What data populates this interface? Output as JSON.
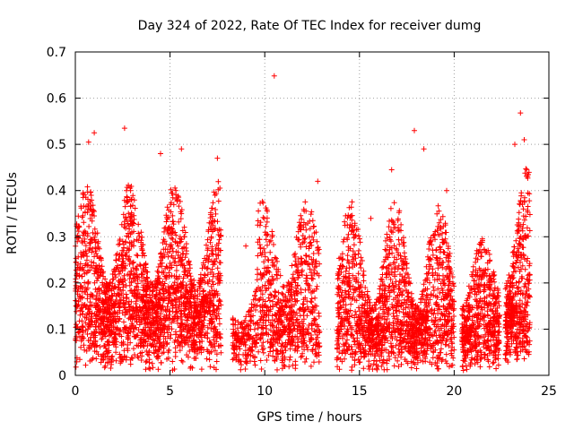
{
  "chart_data": {
    "type": "scatter",
    "title": "Day 324 of 2022, Rate Of TEC Index for receiver dumg",
    "xlabel": "GPS time / hours",
    "ylabel": "ROTI / TECUs",
    "xlim": [
      0,
      25
    ],
    "ylim": [
      0,
      0.7
    ],
    "xticks": [
      0,
      5,
      10,
      15,
      20,
      25
    ],
    "yticks": [
      0,
      0.1,
      0.2,
      0.3,
      0.4,
      0.5,
      0.6,
      0.7
    ],
    "xtick_labels": [
      "0",
      "5",
      "10",
      "15",
      "20",
      "25"
    ],
    "ytick_labels": [
      "0",
      "0.1",
      "0.2",
      "0.3",
      "0.4",
      "0.5",
      "0.6",
      "0.7"
    ],
    "grid": true,
    "marker": "plus",
    "color": "#ff0000",
    "notable_points": [
      {
        "x": 10.5,
        "y": 0.648
      },
      {
        "x": 2.6,
        "y": 0.535
      },
      {
        "x": 1.0,
        "y": 0.525
      },
      {
        "x": 0.7,
        "y": 0.505
      },
      {
        "x": 5.6,
        "y": 0.49
      },
      {
        "x": 4.5,
        "y": 0.48
      },
      {
        "x": 7.5,
        "y": 0.47
      },
      {
        "x": 12.8,
        "y": 0.42
      },
      {
        "x": 17.9,
        "y": 0.53
      },
      {
        "x": 16.7,
        "y": 0.445
      },
      {
        "x": 18.4,
        "y": 0.49
      },
      {
        "x": 23.5,
        "y": 0.568
      },
      {
        "x": 23.2,
        "y": 0.5
      },
      {
        "x": 23.7,
        "y": 0.51
      },
      {
        "x": 19.6,
        "y": 0.4
      },
      {
        "x": 15.6,
        "y": 0.34
      },
      {
        "x": 9.0,
        "y": 0.28
      },
      {
        "x": 21.2,
        "y": 0.27
      },
      {
        "x": 13.9,
        "y": 0.18
      },
      {
        "x": 14.4,
        "y": 0.2
      }
    ],
    "segments": [
      {
        "x0": 0.0,
        "x1": 7.7,
        "ybase": [
          0.01,
          0.15
        ],
        "ytop": [
          0.2,
          0.42
        ],
        "density": 2200
      },
      {
        "x0": 8.3,
        "x1": 9.6,
        "ybase": [
          0.01,
          0.08
        ],
        "ytop": [
          0.12,
          0.2
        ],
        "density": 180
      },
      {
        "x0": 9.6,
        "x1": 12.9,
        "ybase": [
          0.01,
          0.12
        ],
        "ytop": [
          0.2,
          0.38
        ],
        "density": 700
      },
      {
        "x0": 13.8,
        "x1": 20.0,
        "ybase": [
          0.01,
          0.1
        ],
        "ytop": [
          0.15,
          0.38
        ],
        "density": 1600
      },
      {
        "x0": 20.4,
        "x1": 22.4,
        "ybase": [
          0.01,
          0.09
        ],
        "ytop": [
          0.15,
          0.3
        ],
        "density": 550
      },
      {
        "x0": 22.7,
        "x1": 24.0,
        "ybase": [
          0.02,
          0.12
        ],
        "ytop": [
          0.2,
          0.45
        ],
        "density": 450
      }
    ]
  }
}
